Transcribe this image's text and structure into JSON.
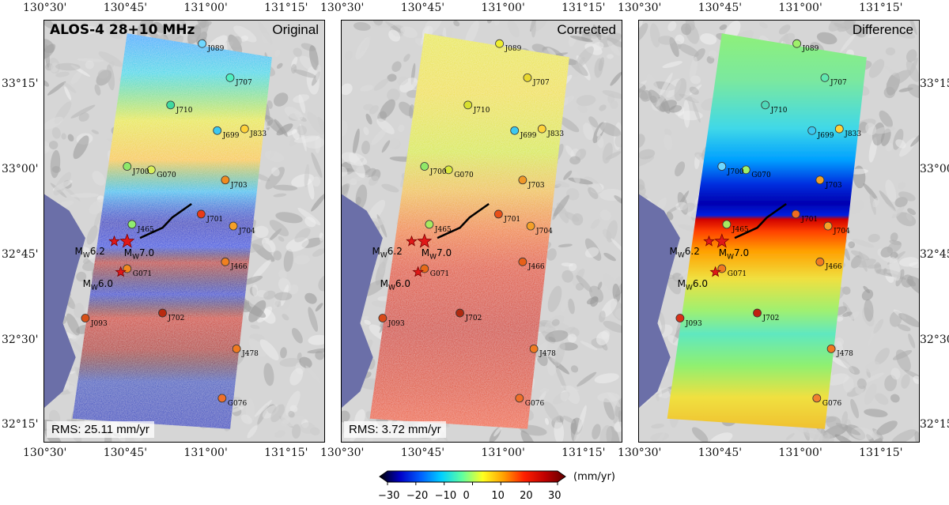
{
  "panels": [
    {
      "id": "original",
      "title_right": "Original",
      "rms": "RMS: 25.11 mm/yr",
      "has_main_title": true
    },
    {
      "id": "corrected",
      "title_right": "Corrected",
      "rms": "RMS: 3.72 mm/yr",
      "has_main_title": false
    },
    {
      "id": "difference",
      "title_right": "Difference",
      "rms": "",
      "has_main_title": false
    }
  ],
  "main_title": "ALOS-4 28+10 MHz",
  "lon_ticks": [
    "130°30'",
    "130°45'",
    "131°00'",
    "131°15'"
  ],
  "lat_ticks": [
    "33°15'",
    "33°00'",
    "32°45'",
    "32°30'",
    "32°15'"
  ],
  "stations": [
    {
      "name": "J089",
      "lon": 130.993,
      "lat": 33.37
    },
    {
      "name": "J707",
      "lon": 131.08,
      "lat": 33.27
    },
    {
      "name": "J710",
      "lon": 130.895,
      "lat": 33.19
    },
    {
      "name": "J699",
      "lon": 131.04,
      "lat": 33.115
    },
    {
      "name": "J833",
      "lon": 131.125,
      "lat": 33.12
    },
    {
      "name": "J700",
      "lon": 130.76,
      "lat": 33.01
    },
    {
      "name": "G070",
      "lon": 130.835,
      "lat": 33.0
    },
    {
      "name": "J703",
      "lon": 131.065,
      "lat": 32.97
    },
    {
      "name": "J701",
      "lon": 130.99,
      "lat": 32.87
    },
    {
      "name": "J704",
      "lon": 131.09,
      "lat": 32.835
    },
    {
      "name": "J465",
      "lon": 130.775,
      "lat": 32.84
    },
    {
      "name": "J466",
      "lon": 131.065,
      "lat": 32.73
    },
    {
      "name": "G071",
      "lon": 130.76,
      "lat": 32.71
    },
    {
      "name": "J702",
      "lon": 130.87,
      "lat": 32.58
    },
    {
      "name": "J093",
      "lon": 130.63,
      "lat": 32.565
    },
    {
      "name": "J478",
      "lon": 131.1,
      "lat": 32.475
    },
    {
      "name": "G076",
      "lon": 131.055,
      "lat": 32.33
    }
  ],
  "station_colors": {
    "original": {
      "J089": "#6fd7ff",
      "J707": "#4ff0c0",
      "J710": "#3fd9a0",
      "J699": "#3cc8f0",
      "J833": "#ffd23a",
      "J700": "#8fe86a",
      "G070": "#d8f05a",
      "J703": "#f08a20",
      "J701": "#e83a16",
      "J704": "#f5a028",
      "J465": "#90ee70",
      "J466": "#f08020",
      "G071": "#f08820",
      "J702": "#b82a10",
      "J093": "#d85018",
      "J478": "#f07a20",
      "G076": "#f0702a"
    },
    "corrected": {
      "J089": "#eeee30",
      "J707": "#e8d830",
      "J710": "#d8e030",
      "J699": "#3cc8f0",
      "J833": "#ffd23a",
      "J700": "#90e868",
      "G070": "#d8e83a",
      "J703": "#f09828",
      "J701": "#e85018",
      "J704": "#f5a028",
      "J465": "#a8ea60",
      "J466": "#e86018",
      "G071": "#e86a18",
      "J702": "#b02a10",
      "J093": "#d84a18",
      "J478": "#f07a20",
      "G076": "#f07028"
    },
    "difference": {
      "J089": "#9ef06a",
      "J707": "#60e8b0",
      "J710": "#50d8b8",
      "J699": "#3cc8f0",
      "J833": "#ffd23a",
      "J700": "#6fd7ff",
      "G070": "#9ef06a",
      "J703": "#f0a028",
      "J701": "#f06a20",
      "J704": "#f5a028",
      "J465": "#a8ea60",
      "J466": "#f07a20",
      "G071": "#f07a20",
      "J702": "#c02010",
      "J093": "#d83018",
      "J478": "#f07a20",
      "G076": "#f08030"
    }
  },
  "earthquakes": [
    {
      "label_prefix": "M",
      "label_sub": "W",
      "label_mag": "6.2",
      "lon": 130.72,
      "lat": 32.79
    },
    {
      "label_prefix": "M",
      "label_sub": "W",
      "label_mag": "7.0",
      "lon": 130.76,
      "lat": 32.79
    },
    {
      "label_prefix": "M",
      "label_sub": "W",
      "label_mag": "6.0",
      "lon": 130.74,
      "lat": 32.7
    }
  ],
  "colorbar": {
    "min": -30,
    "max": 30,
    "ticks": [
      "−30",
      "−20",
      "−10",
      "0",
      "10",
      "20",
      "30"
    ],
    "unit": "(mm/yr)",
    "colors": [
      "#000000",
      "#0000c8",
      "#0060ff",
      "#00d0ff",
      "#60ffa0",
      "#ffff20",
      "#ffa000",
      "#ff2000",
      "#c00000",
      "#600000"
    ]
  }
}
